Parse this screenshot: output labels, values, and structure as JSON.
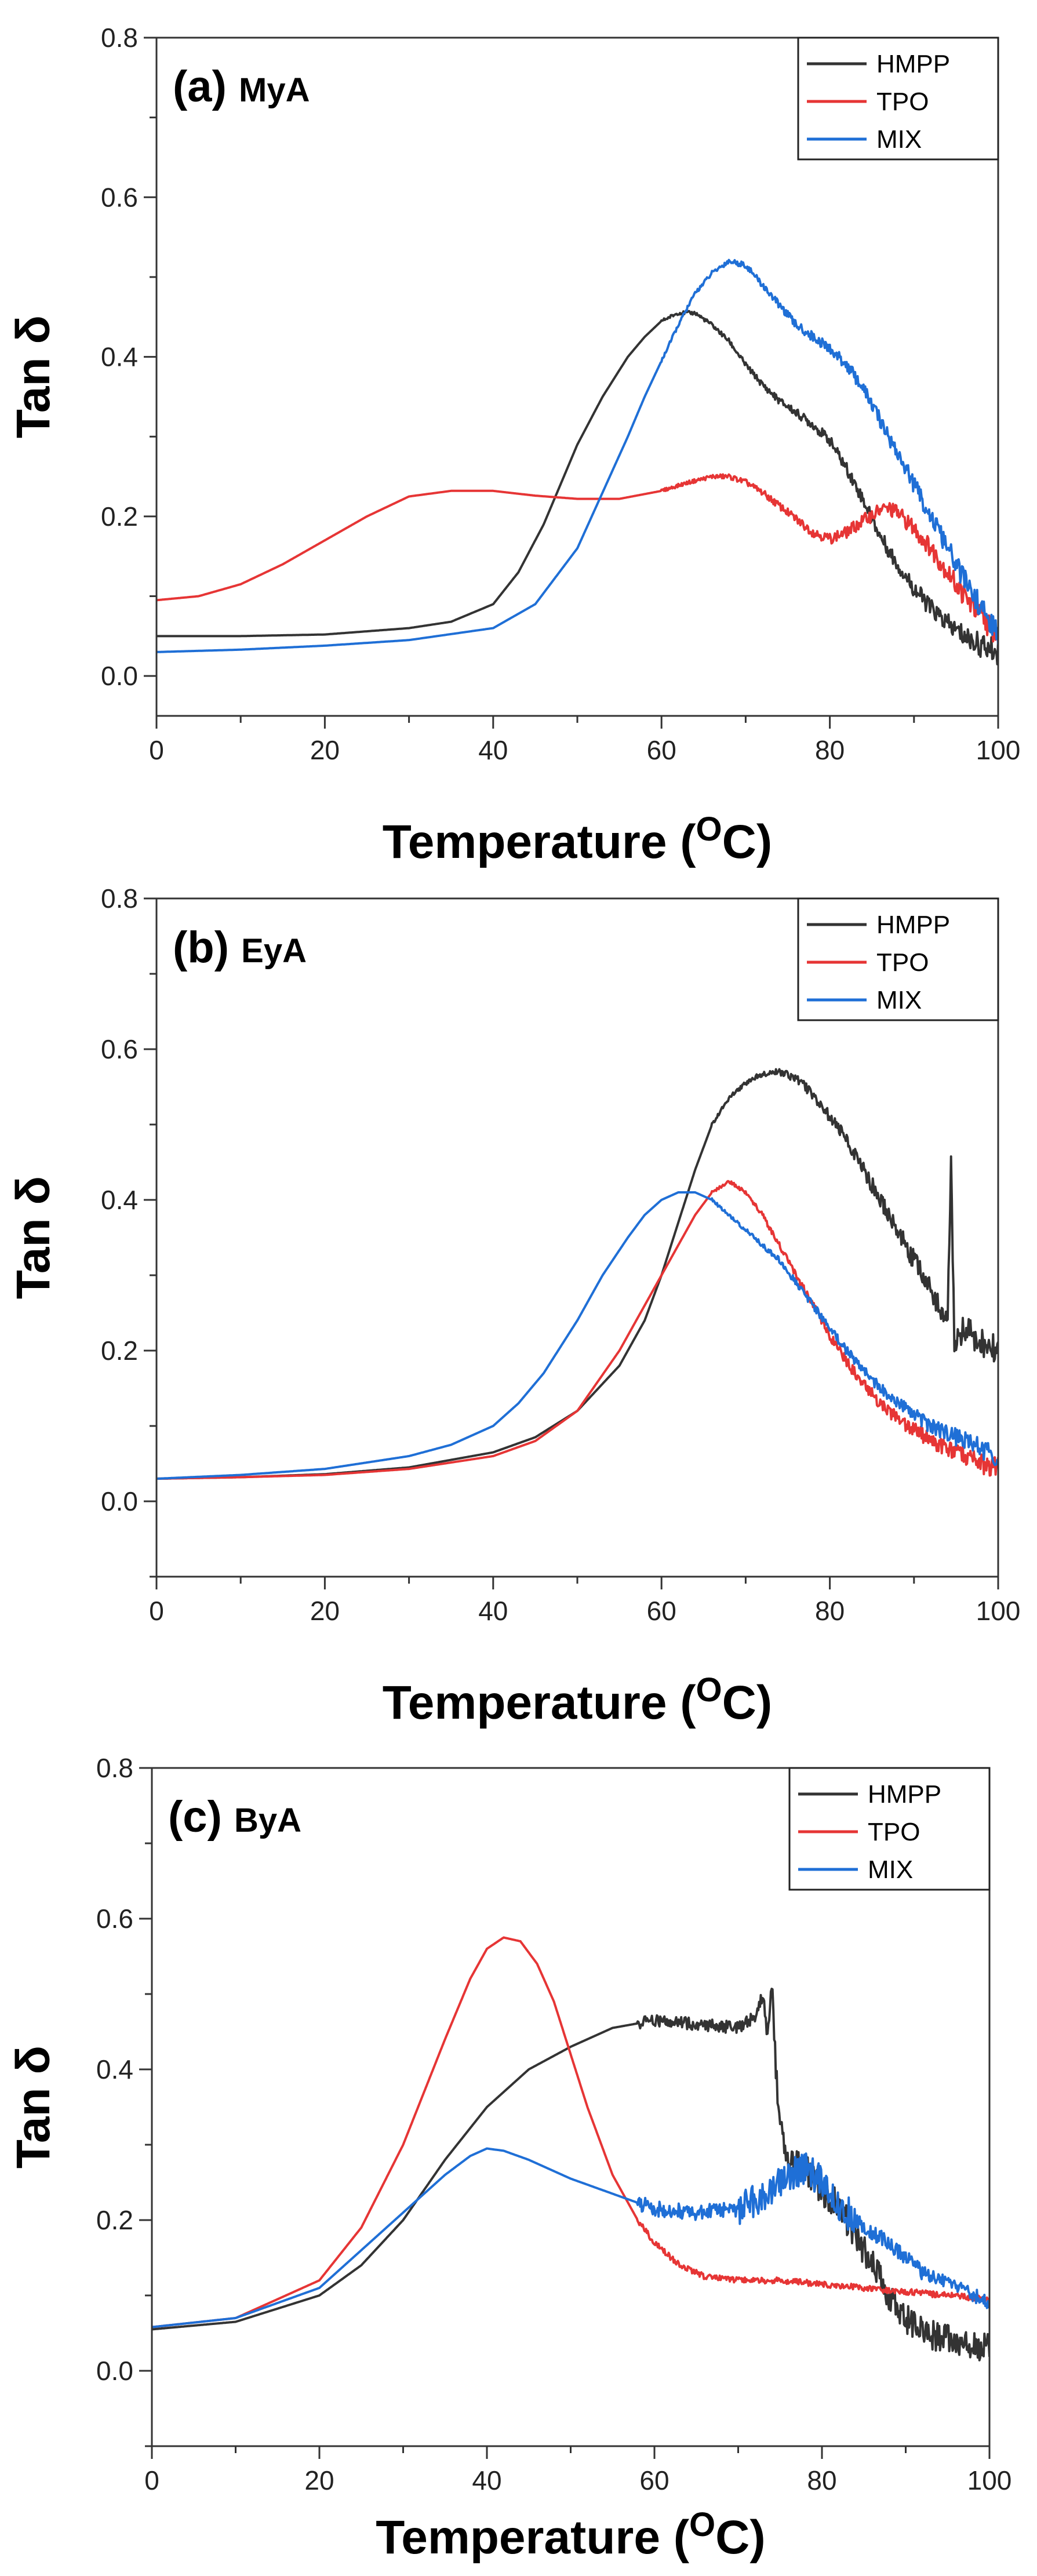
{
  "chart_data": [
    {
      "type": "line",
      "panel_label": "(a)",
      "title": "MyA",
      "xlabel": "Temperature",
      "xlabel_unit": "C",
      "xlabel_unit_sup": "O",
      "ylabel": "Tan δ",
      "xlim": [
        0,
        100
      ],
      "ylim": [
        -0.05,
        0.8
      ],
      "xticks": [
        0,
        20,
        40,
        60,
        80,
        100
      ],
      "yticks": [
        0.0,
        0.2,
        0.4,
        0.6,
        0.8
      ],
      "xtick_labels": [
        "0",
        "20",
        "40",
        "60",
        "80",
        "100"
      ],
      "ytick_labels": [
        "0.0",
        "0.2",
        "0.4",
        "0.6",
        "0.8"
      ],
      "legend_position": "top-right",
      "series": [
        {
          "name": "HMPP",
          "color": "#333333",
          "x": [
            0,
            10,
            20,
            30,
            35,
            40,
            43,
            46,
            48,
            50,
            53,
            56,
            58,
            60,
            62,
            64,
            66,
            68,
            70,
            72,
            74,
            76,
            78,
            80,
            82,
            84,
            86,
            88,
            90,
            92,
            94,
            96,
            98,
            100
          ],
          "y": [
            0.05,
            0.05,
            0.052,
            0.06,
            0.068,
            0.09,
            0.13,
            0.19,
            0.24,
            0.29,
            0.35,
            0.4,
            0.425,
            0.445,
            0.455,
            0.455,
            0.44,
            0.42,
            0.39,
            0.365,
            0.345,
            0.33,
            0.315,
            0.295,
            0.26,
            0.22,
            0.175,
            0.14,
            0.11,
            0.085,
            0.065,
            0.05,
            0.038,
            0.03
          ]
        },
        {
          "name": "TPO",
          "color": "#e63535",
          "x": [
            0,
            5,
            10,
            15,
            20,
            25,
            30,
            35,
            40,
            45,
            50,
            55,
            60,
            63,
            66,
            68,
            70,
            72,
            75,
            78,
            80,
            82,
            84,
            86,
            87,
            88,
            90,
            92,
            94,
            96,
            98,
            100
          ],
          "y": [
            0.095,
            0.1,
            0.115,
            0.14,
            0.17,
            0.2,
            0.225,
            0.232,
            0.232,
            0.226,
            0.222,
            0.222,
            0.232,
            0.242,
            0.25,
            0.25,
            0.243,
            0.23,
            0.205,
            0.18,
            0.172,
            0.18,
            0.195,
            0.208,
            0.21,
            0.205,
            0.185,
            0.16,
            0.13,
            0.1,
            0.075,
            0.05
          ]
        },
        {
          "name": "MIX",
          "color": "#1f6fd6",
          "x": [
            0,
            10,
            20,
            30,
            40,
            45,
            50,
            53,
            56,
            58,
            60,
            62,
            64,
            66,
            68,
            70,
            72,
            74,
            76,
            78,
            80,
            82,
            84,
            86,
            88,
            90,
            92,
            94,
            96,
            98,
            100
          ],
          "y": [
            0.03,
            0.033,
            0.038,
            0.045,
            0.06,
            0.09,
            0.16,
            0.23,
            0.3,
            0.35,
            0.395,
            0.44,
            0.48,
            0.505,
            0.52,
            0.515,
            0.49,
            0.465,
            0.44,
            0.425,
            0.41,
            0.39,
            0.36,
            0.32,
            0.28,
            0.24,
            0.2,
            0.16,
            0.12,
            0.085,
            0.05
          ]
        }
      ]
    },
    {
      "type": "line",
      "panel_label": "(b)",
      "title": "EyA",
      "xlabel": "Temperature",
      "xlabel_unit": "C",
      "xlabel_unit_sup": "O",
      "ylabel": "Tan δ",
      "xlim": [
        0,
        100
      ],
      "ylim": [
        -0.1,
        0.8
      ],
      "xticks": [
        0,
        20,
        40,
        60,
        80,
        100
      ],
      "yticks": [
        0.0,
        0.2,
        0.4,
        0.6,
        0.8
      ],
      "xtick_labels": [
        "0",
        "20",
        "40",
        "60",
        "80",
        "100"
      ],
      "ytick_labels": [
        "0.0",
        "0.2",
        "0.4",
        "0.6",
        "0.8"
      ],
      "legend_position": "top-right",
      "series": [
        {
          "name": "HMPP",
          "color": "#333333",
          "x": [
            0,
            10,
            20,
            30,
            40,
            45,
            50,
            55,
            58,
            60,
            62,
            64,
            66,
            68,
            70,
            72,
            74,
            76,
            78,
            80,
            82,
            84,
            86,
            88,
            90,
            92,
            93,
            94,
            94.4,
            94.8,
            96,
            98,
            100
          ],
          "y": [
            0.03,
            0.032,
            0.036,
            0.045,
            0.065,
            0.085,
            0.12,
            0.18,
            0.24,
            0.3,
            0.37,
            0.44,
            0.5,
            0.535,
            0.555,
            0.568,
            0.57,
            0.562,
            0.54,
            0.51,
            0.48,
            0.44,
            0.4,
            0.36,
            0.32,
            0.28,
            0.26,
            0.24,
            0.455,
            0.21,
            0.23,
            0.21,
            0.2
          ]
        },
        {
          "name": "TPO",
          "color": "#e63535",
          "x": [
            0,
            10,
            20,
            30,
            40,
            45,
            50,
            55,
            58,
            60,
            62,
            64,
            66,
            68,
            70,
            72,
            74,
            76,
            78,
            80,
            82,
            84,
            86,
            88,
            90,
            92,
            94,
            96,
            98,
            100
          ],
          "y": [
            0.03,
            0.032,
            0.035,
            0.043,
            0.06,
            0.08,
            0.12,
            0.2,
            0.26,
            0.3,
            0.34,
            0.38,
            0.41,
            0.425,
            0.41,
            0.38,
            0.34,
            0.3,
            0.26,
            0.22,
            0.185,
            0.155,
            0.13,
            0.11,
            0.095,
            0.08,
            0.07,
            0.06,
            0.05,
            0.045
          ]
        },
        {
          "name": "MIX",
          "color": "#1f6fd6",
          "x": [
            0,
            10,
            20,
            30,
            35,
            40,
            43,
            46,
            50,
            53,
            56,
            58,
            60,
            62,
            64,
            66,
            68,
            70,
            72,
            74,
            76,
            78,
            80,
            82,
            84,
            86,
            88,
            90,
            92,
            94,
            96,
            98,
            100
          ],
          "y": [
            0.03,
            0.035,
            0.043,
            0.06,
            0.075,
            0.1,
            0.13,
            0.17,
            0.24,
            0.3,
            0.35,
            0.38,
            0.4,
            0.41,
            0.41,
            0.4,
            0.38,
            0.36,
            0.34,
            0.32,
            0.29,
            0.26,
            0.23,
            0.2,
            0.175,
            0.15,
            0.13,
            0.115,
            0.1,
            0.09,
            0.08,
            0.07,
            0.06
          ]
        }
      ]
    },
    {
      "type": "line",
      "panel_label": "(c)",
      "title": "ByA",
      "xlabel": "Temperature",
      "xlabel_unit": "C",
      "xlabel_unit_sup": "O",
      "ylabel": "Tan δ",
      "xlim": [
        0,
        100
      ],
      "ylim": [
        -0.1,
        0.8
      ],
      "xticks": [
        0,
        20,
        40,
        60,
        80,
        100
      ],
      "yticks": [
        0.0,
        0.2,
        0.4,
        0.6,
        0.8
      ],
      "xtick_labels": [
        "0",
        "20",
        "40",
        "60",
        "80",
        "100"
      ],
      "ytick_labels": [
        "0.0",
        "0.2",
        "0.4",
        "0.6",
        "0.8"
      ],
      "legend_position": "top-right",
      "series": [
        {
          "name": "HMPP",
          "color": "#333333",
          "x": [
            0,
            10,
            20,
            25,
            30,
            35,
            40,
            45,
            50,
            55,
            60,
            65,
            70,
            72,
            73,
            73.5,
            74,
            74.5,
            75,
            76,
            78,
            80,
            82,
            84,
            86,
            88,
            90,
            92,
            94,
            96,
            98,
            100
          ],
          "y": [
            0.055,
            0.065,
            0.1,
            0.14,
            0.2,
            0.28,
            0.35,
            0.4,
            0.43,
            0.455,
            0.465,
            0.46,
            0.455,
            0.47,
            0.5,
            0.44,
            0.52,
            0.4,
            0.32,
            0.28,
            0.27,
            0.24,
            0.22,
            0.18,
            0.14,
            0.1,
            0.07,
            0.05,
            0.045,
            0.04,
            0.035,
            0.03
          ]
        },
        {
          "name": "TPO",
          "color": "#e63535",
          "x": [
            0,
            10,
            20,
            25,
            30,
            35,
            38,
            40,
            42,
            44,
            46,
            48,
            50,
            52,
            55,
            58,
            60,
            63,
            66,
            70,
            75,
            80,
            85,
            90,
            95,
            100
          ],
          "y": [
            0.058,
            0.07,
            0.12,
            0.19,
            0.3,
            0.44,
            0.52,
            0.56,
            0.575,
            0.57,
            0.54,
            0.49,
            0.42,
            0.35,
            0.26,
            0.2,
            0.17,
            0.14,
            0.125,
            0.12,
            0.12,
            0.115,
            0.11,
            0.105,
            0.1,
            0.095
          ]
        },
        {
          "name": "MIX",
          "color": "#1f6fd6",
          "x": [
            0,
            10,
            20,
            25,
            30,
            35,
            38,
            40,
            42,
            45,
            48,
            50,
            55,
            60,
            65,
            70,
            73,
            76,
            78,
            80,
            82,
            85,
            88,
            90,
            92,
            94,
            96,
            98,
            100
          ],
          "y": [
            0.058,
            0.07,
            0.11,
            0.16,
            0.21,
            0.26,
            0.285,
            0.295,
            0.292,
            0.28,
            0.265,
            0.255,
            0.235,
            0.215,
            0.21,
            0.215,
            0.23,
            0.26,
            0.27,
            0.25,
            0.22,
            0.19,
            0.17,
            0.15,
            0.13,
            0.12,
            0.11,
            0.1,
            0.09
          ]
        }
      ]
    }
  ]
}
